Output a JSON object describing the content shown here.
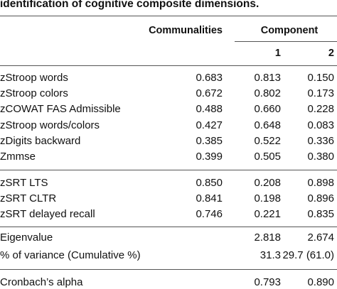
{
  "title": "identification of cognitive composite dimensions.",
  "header": {
    "communalities": "Communalities",
    "component": "Component",
    "component_1": "1",
    "component_2": "2"
  },
  "rows": [
    {
      "label": "zStroop words",
      "communality": "0.683",
      "c1": "0.813",
      "c2": "0.150"
    },
    {
      "label": "zStroop colors",
      "communality": "0.672",
      "c1": "0.802",
      "c2": "0.173"
    },
    {
      "label": "zCOWAT FAS Admissible",
      "communality": "0.488",
      "c1": "0.660",
      "c2": "0.228"
    },
    {
      "label": "zStroop words/colors",
      "communality": "0.427",
      "c1": "0.648",
      "c2": "0.083"
    },
    {
      "label": "zDigits backward",
      "communality": "0.385",
      "c1": "0.522",
      "c2": "0.336"
    },
    {
      "label": "Zmmse",
      "communality": "0.399",
      "c1": "0.505",
      "c2": "0.380"
    },
    {
      "label": "zSRT LTS",
      "communality": "0.850",
      "c1": "0.208",
      "c2": "0.898"
    },
    {
      "label": "zSRT CLTR",
      "communality": "0.841",
      "c1": "0.198",
      "c2": "0.896"
    },
    {
      "label": "zSRT delayed recall",
      "communality": "0.746",
      "c1": "0.221",
      "c2": "0.835"
    }
  ],
  "summary": [
    {
      "label": "Eigenvalue",
      "c1": "2.818",
      "c2": "2.674"
    },
    {
      "label": "% of variance (Cumulative %)",
      "c1": "31.3",
      "c2": "29.7 (61.0)"
    },
    {
      "label": "Cronbach’s alpha",
      "c1": "0.793",
      "c2": "0.890"
    }
  ]
}
